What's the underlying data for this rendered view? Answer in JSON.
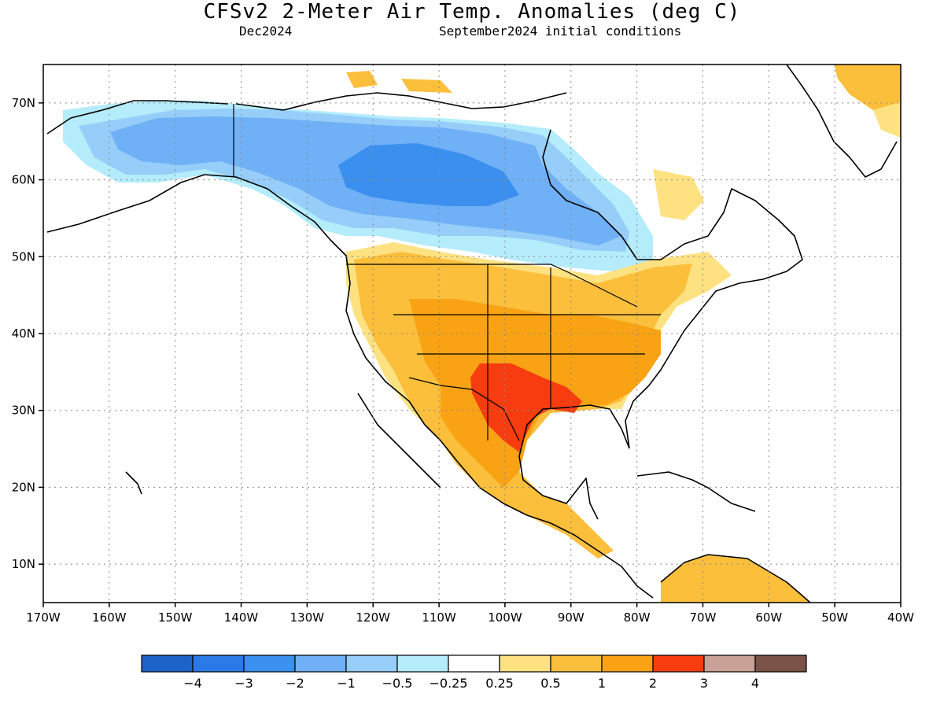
{
  "header": {
    "title": "CFSv2 2-Meter Air Temp. Anomalies (deg C)",
    "valid_month": "Dec2024",
    "init": "September2024 initial conditions"
  },
  "map_data": {
    "type": "choropleth-map",
    "projection": "lat-lon",
    "lon_range": [
      -170,
      -40
    ],
    "lat_range": [
      5,
      75
    ],
    "x_ticks": [
      "170W",
      "160W",
      "150W",
      "140W",
      "130W",
      "120W",
      "110W",
      "100W",
      "90W",
      "80W",
      "70W",
      "60W",
      "50W",
      "40W"
    ],
    "y_ticks": [
      "10N",
      "20N",
      "30N",
      "40N",
      "50N",
      "60N",
      "70N"
    ],
    "grid": true,
    "regions": [
      {
        "name": "Alaska",
        "anomaly_bin": "-1 to -0.5"
      },
      {
        "name": "Northern Canada",
        "anomaly_bin": "-2 to -1"
      },
      {
        "name": "Central Canada core",
        "anomaly_bin": "-3 to -2"
      },
      {
        "name": "Western US",
        "anomaly_bin": "0.5 to 1"
      },
      {
        "name": "Central/Eastern US",
        "anomaly_bin": "1 to 2"
      },
      {
        "name": "Texas / Lower Mississippi",
        "anomaly_bin": "2 to 3"
      },
      {
        "name": "Mexico",
        "anomaly_bin": "1 to 2"
      },
      {
        "name": "Northern South America",
        "anomaly_bin": "0.5 to 1"
      },
      {
        "name": "Greenland east",
        "anomaly_bin": "0.5 to 1"
      }
    ]
  },
  "colorbar": {
    "colors": [
      "#1c63c8",
      "#2a79e6",
      "#3b8fef",
      "#6fb0f6",
      "#96cdf9",
      "#b4ecfb",
      "#ffffff",
      "#fee281",
      "#fbbf3c",
      "#f9a314",
      "#f73c10",
      "#c9a197",
      "#7b5248"
    ],
    "labels": [
      "−4",
      "−3",
      "−2",
      "−1",
      "−0.5",
      "−0.25",
      "0.25",
      "0.5",
      "1",
      "2",
      "3",
      "4"
    ]
  }
}
